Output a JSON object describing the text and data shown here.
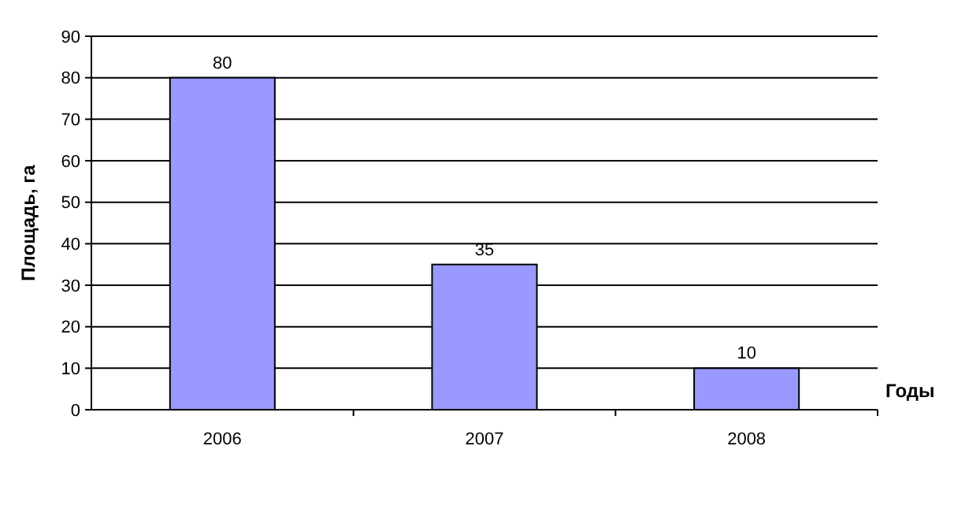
{
  "chart_data": {
    "type": "bar",
    "categories": [
      "2006",
      "2007",
      "2008"
    ],
    "values": [
      80,
      35,
      10
    ],
    "color": "#9999ff",
    "ylabel": "Площадь, га",
    "xlabel": "Годы",
    "ylim": [
      0,
      90
    ],
    "yticks": [
      0,
      10,
      20,
      30,
      40,
      50,
      60,
      70,
      80,
      90
    ],
    "grid": "y",
    "data_labels": true
  }
}
